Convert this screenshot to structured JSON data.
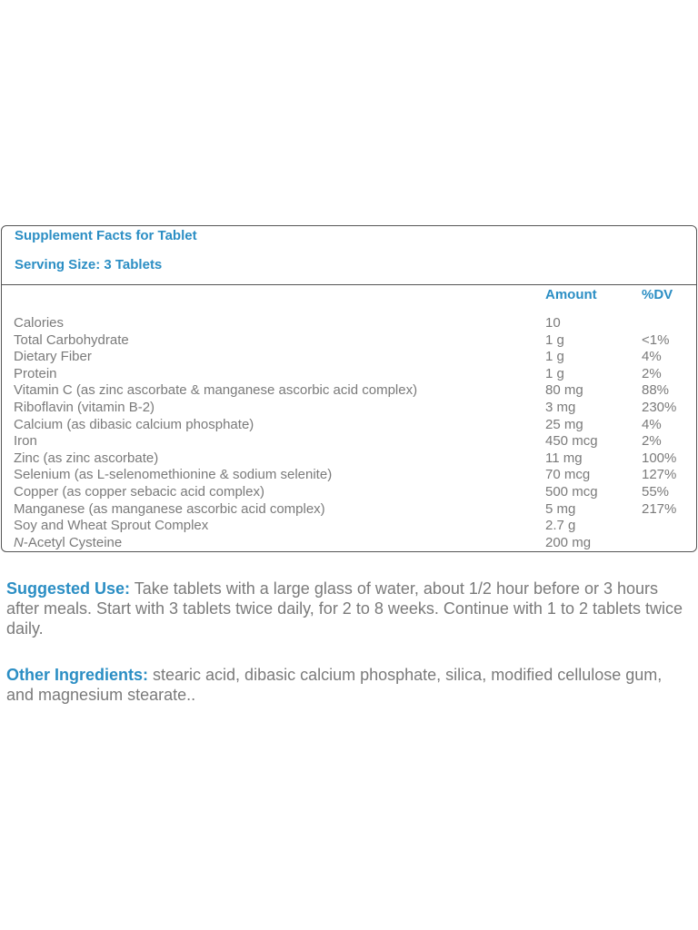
{
  "facts": {
    "title": "Supplement Facts for Tablet",
    "serving_size": "Serving Size: 3 Tablets",
    "col_amount": "Amount",
    "col_dv": "%DV",
    "rows": [
      {
        "name": "Calories",
        "amount": "10",
        "dv": ""
      },
      {
        "name": "Total Carbohydrate",
        "amount": "1 g",
        "dv": "<1%"
      },
      {
        "name": "Dietary Fiber",
        "amount": "1 g",
        "dv": "4%"
      },
      {
        "name": "Protein",
        "amount": "1 g",
        "dv": "2%"
      },
      {
        "name": "Vitamin C (as zinc ascorbate & manganese ascorbic acid complex)",
        "amount": "80 mg",
        "dv": "88%"
      },
      {
        "name": "Riboflavin (vitamin B-2)",
        "amount": "3 mg",
        "dv": "230%"
      },
      {
        "name": "Calcium (as dibasic calcium phosphate)",
        "amount": "25 mg",
        "dv": "4%"
      },
      {
        "name": "Iron",
        "amount": "450 mcg",
        "dv": "2%"
      },
      {
        "name": "Zinc (as zinc ascorbate)",
        "amount": "11 mg",
        "dv": "100%"
      },
      {
        "name": "Selenium (as L-selenomethionine & sodium selenite)",
        "amount": "70 mcg",
        "dv": "127%"
      },
      {
        "name": "Copper (as copper sebacic acid complex)",
        "amount": "500 mcg",
        "dv": "55%"
      },
      {
        "name": "Manganese (as manganese ascorbic acid complex)",
        "amount": "5 mg",
        "dv": "217%"
      },
      {
        "name": "Soy and Wheat Sprout Complex",
        "amount": "2.7 g",
        "dv": ""
      },
      {
        "name": "N-Acetyl Cysteine",
        "amount": "200 mg",
        "dv": ""
      }
    ]
  },
  "suggested_use": {
    "label": "Suggested Use:",
    "text": " Take tablets with a large glass of water, about 1/2 hour before or 3 hours after meals. Start with 3 tablets twice daily, for 2 to 8 weeks. Continue with 1 to 2 tablets twice daily."
  },
  "other_ingredients": {
    "label": "Other Ingredients:",
    "text": " stearic acid, dibasic calcium phosphate, silica, modified cellulose gum, and magnesium stearate.."
  },
  "colors": {
    "accent": "#2b8ec4",
    "text": "#7a7a7a",
    "border": "#555555"
  }
}
